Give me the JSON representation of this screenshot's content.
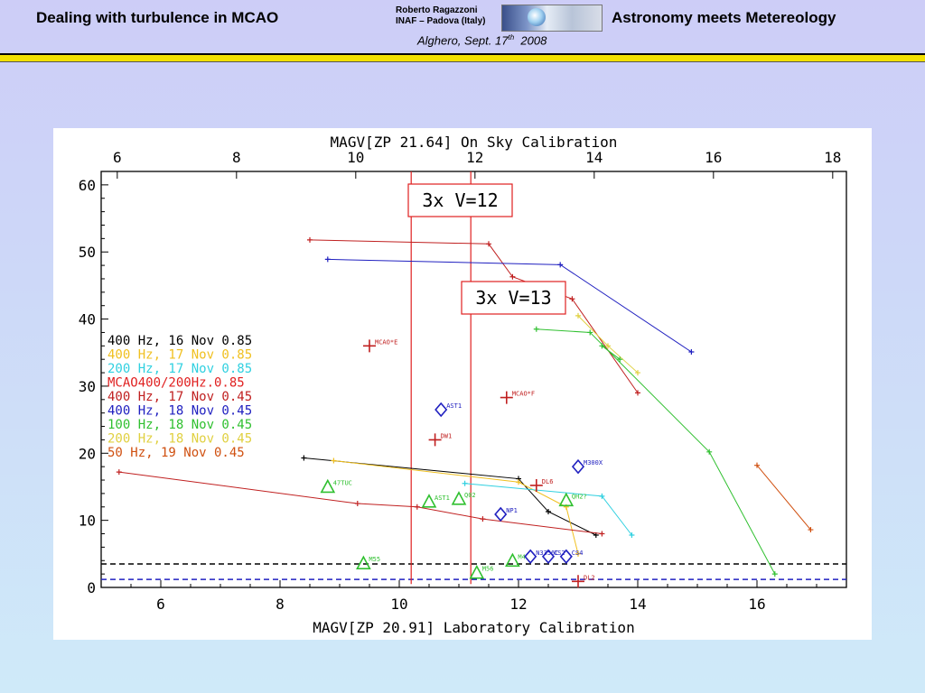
{
  "header": {
    "left_title": "Dealing with turbulence in MCAO",
    "right_title": "Astronomy meets Metereology",
    "author_line1": "Roberto Ragazzoni",
    "author_line2": "INAF – Padova (Italy)",
    "venue": "Alghero, Sept. 17",
    "venue_sup": "th",
    "venue_year": "2008",
    "logo_icon": "inaf-logo-icon"
  },
  "chart_data": {
    "type": "scatter",
    "title": "On Sky Calibration",
    "top_axis_label": "MAGV[ZP 21.64] On Sky Calibration",
    "xlabel": "MAGV[ZP 20.91] Laboratory Calibration",
    "xlim": [
      5,
      17.5
    ],
    "ylim": [
      0,
      62
    ],
    "x_ticks": [
      6,
      8,
      10,
      12,
      14,
      16
    ],
    "top_ticks": [
      6,
      8,
      10,
      12,
      14,
      16,
      18
    ],
    "top_offset": 0.73,
    "y_ticks": [
      0,
      10,
      20,
      30,
      40,
      50,
      60
    ],
    "legend": [
      {
        "label": "400 Hz, 16 Nov 0.85",
        "color": "#000000"
      },
      {
        "label": "400 Hz, 17 Nov 0.85",
        "color": "#f0c020"
      },
      {
        "label": "200 Hz, 17 Nov 0.85",
        "color": "#30d0e0"
      },
      {
        "label": "MCAO400/200Hz.0.85",
        "color": "#e02020"
      },
      {
        "label": "400 Hz, 17 Nov 0.45",
        "color": "#c02020"
      },
      {
        "label": "400 Hz, 18 Nov 0.45",
        "color": "#2020c0"
      },
      {
        "label": "100 Hz, 18 Nov 0.45",
        "color": "#30c030"
      },
      {
        "label": "200 Hz, 18 Nov 0.45",
        "color": "#e0d040"
      },
      {
        "label": "50 Hz, 19 Nov 0.45",
        "color": "#d05010"
      }
    ],
    "series": [
      {
        "color": "#000000",
        "points": [
          [
            8.4,
            19.3
          ],
          [
            12.0,
            16.2
          ],
          [
            12.5,
            11.3
          ],
          [
            13.3,
            7.8
          ]
        ]
      },
      {
        "color": "#f0c020",
        "points": [
          [
            8.9,
            18.9
          ],
          [
            12.0,
            15.7
          ],
          [
            12.8,
            12.0
          ],
          [
            13.0,
            5.0
          ]
        ]
      },
      {
        "color": "#30d0e0",
        "points": [
          [
            11.1,
            15.5
          ],
          [
            13.4,
            13.6
          ],
          [
            13.9,
            7.8
          ]
        ]
      },
      {
        "color": "#c02020",
        "points": [
          [
            5.3,
            17.2
          ],
          [
            9.3,
            12.5
          ],
          [
            10.3,
            12.0
          ],
          [
            11.4,
            10.2
          ],
          [
            13.4,
            8.0
          ]
        ]
      },
      {
        "color": "#c02020",
        "points": [
          [
            8.5,
            51.8
          ],
          [
            11.5,
            51.2
          ],
          [
            11.9,
            46.3
          ],
          [
            12.9,
            43.0
          ],
          [
            14.0,
            29.0
          ]
        ]
      },
      {
        "color": "#2020c0",
        "points": [
          [
            8.8,
            48.9
          ],
          [
            12.7,
            48.1
          ],
          [
            14.9,
            35.1
          ]
        ]
      },
      {
        "color": "#30c030",
        "points": [
          [
            12.3,
            38.5
          ],
          [
            13.2,
            38.0
          ],
          [
            15.2,
            20.2
          ],
          [
            16.3,
            2.0
          ]
        ]
      },
      {
        "color": "#e0d040",
        "points": [
          [
            13.0,
            40.5
          ],
          [
            13.5,
            36.0
          ],
          [
            14.0,
            32.0
          ]
        ]
      },
      {
        "color": "#30c030",
        "points": [
          [
            13.4,
            36.0
          ],
          [
            13.7,
            34.0
          ]
        ]
      },
      {
        "color": "#d05010",
        "points": [
          [
            16.0,
            18.2
          ],
          [
            16.9,
            8.6
          ]
        ]
      }
    ],
    "thresholds": [
      {
        "label": "3x V=12",
        "x": 10.2
      },
      {
        "label": "3x V=13",
        "x": 11.2
      }
    ],
    "hlines": [
      {
        "y": 3.5,
        "color": "#000000"
      },
      {
        "y": 1.2,
        "color": "#2020c0"
      }
    ],
    "annotations": [
      {
        "type": "plus",
        "x": 9.5,
        "y": 36.0,
        "color": "#c02020",
        "label": "MCAO*E"
      },
      {
        "type": "plus",
        "x": 11.8,
        "y": 28.3,
        "color": "#c02020",
        "label": "MCAO*F"
      },
      {
        "type": "diamond",
        "x": 10.7,
        "y": 26.5,
        "color": "#2020c0",
        "label": "AST1"
      },
      {
        "type": "plus",
        "x": 10.6,
        "y": 22.0,
        "color": "#c02020",
        "label": "DW1"
      },
      {
        "type": "diamond",
        "x": 13.0,
        "y": 18.0,
        "color": "#2020c0",
        "label": "M300X"
      },
      {
        "type": "plus",
        "x": 12.3,
        "y": 15.2,
        "color": "#c02020",
        "label": "DL6"
      },
      {
        "type": "triangle",
        "x": 8.8,
        "y": 15.0,
        "color": "#30c030",
        "label": "47TUC"
      },
      {
        "type": "triangle",
        "x": 10.5,
        "y": 12.8,
        "color": "#30c030",
        "label": "AST1"
      },
      {
        "type": "triangle",
        "x": 11.0,
        "y": 13.2,
        "color": "#30c030",
        "label": "Q02"
      },
      {
        "type": "triangle",
        "x": 12.8,
        "y": 13.0,
        "color": "#30c030",
        "label": "QH2?"
      },
      {
        "type": "diamond",
        "x": 11.7,
        "y": 10.9,
        "color": "#2020c0",
        "label": "NP1"
      },
      {
        "type": "triangle",
        "x": 9.4,
        "y": 3.6,
        "color": "#30c030",
        "label": "M55"
      },
      {
        "type": "triangle",
        "x": 11.3,
        "y": 2.2,
        "color": "#30c030",
        "label": "M56"
      },
      {
        "type": "triangle",
        "x": 11.9,
        "y": 4.0,
        "color": "#30c030",
        "label": "M4"
      },
      {
        "type": "diamond",
        "x": 12.2,
        "y": 4.6,
        "color": "#2020c0",
        "label": "N3356C"
      },
      {
        "type": "diamond",
        "x": 12.5,
        "y": 4.6,
        "color": "#2020c0",
        "label": "CS2"
      },
      {
        "type": "diamond",
        "x": 12.8,
        "y": 4.6,
        "color": "#2020c0",
        "label": "CS4"
      },
      {
        "type": "plus",
        "x": 13.0,
        "y": 0.9,
        "color": "#c02020",
        "label": "DL2"
      }
    ]
  }
}
